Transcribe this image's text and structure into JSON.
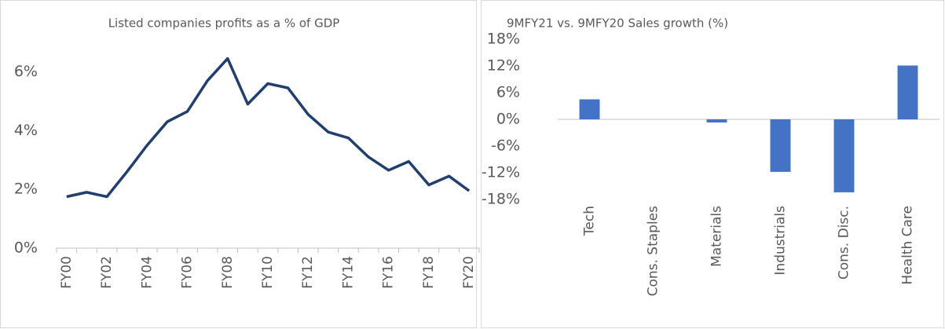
{
  "chart_data": [
    {
      "type": "line",
      "title": "Listed companies profits as a % of GDP",
      "categories": [
        "FY00",
        null,
        "FY02",
        null,
        "FY04",
        null,
        "FY06",
        null,
        "FY08",
        null,
        "FY10",
        null,
        "FY12",
        null,
        "FY14",
        null,
        "FY16",
        null,
        "FY18",
        null,
        "FY20"
      ],
      "series": [
        {
          "name": null,
          "color": "#203f6e",
          "values": [
            1.75,
            1.9,
            1.75,
            2.6,
            3.5,
            4.3,
            4.65,
            5.7,
            6.45,
            4.9,
            5.6,
            5.45,
            4.55,
            3.95,
            3.75,
            3.1,
            2.65,
            2.95,
            2.15,
            2.45,
            1.95
          ]
        }
      ],
      "ylim": [
        0,
        7
      ],
      "yticks": [
        {
          "value": 0,
          "label": "0%"
        },
        {
          "value": 2,
          "label": "2%"
        },
        {
          "value": 4,
          "label": "4%"
        },
        {
          "value": 6,
          "label": "6%"
        }
      ],
      "grid": false
    },
    {
      "type": "bar",
      "title": "9MFY21 vs. 9MFY20 Sales growth (%)",
      "categories": [
        "Tech",
        "Cons. Staples",
        "Materials",
        "Industrials",
        "Cons. Disc.",
        "Health Care"
      ],
      "values": [
        4.5,
        0,
        -0.7,
        -11.8,
        -16.4,
        12.1
      ],
      "color": "#4472c4",
      "ylim": [
        -18,
        18
      ],
      "yticks": [
        {
          "value": -18,
          "label": "-18%"
        },
        {
          "value": -12,
          "label": "-12%"
        },
        {
          "value": -6,
          "label": "-6%"
        },
        {
          "value": 0,
          "label": "0%"
        },
        {
          "value": 6,
          "label": "6%"
        },
        {
          "value": 12,
          "label": "12%"
        },
        {
          "value": 18,
          "label": "18%"
        }
      ],
      "grid": false
    }
  ]
}
